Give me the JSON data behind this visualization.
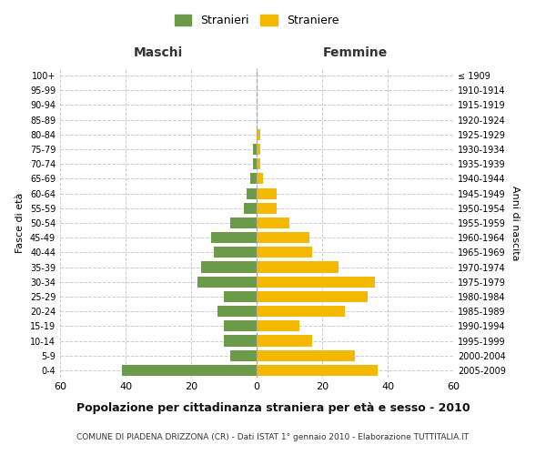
{
  "age_groups": [
    "0-4",
    "5-9",
    "10-14",
    "15-19",
    "20-24",
    "25-29",
    "30-34",
    "35-39",
    "40-44",
    "45-49",
    "50-54",
    "55-59",
    "60-64",
    "65-69",
    "70-74",
    "75-79",
    "80-84",
    "85-89",
    "90-94",
    "95-99",
    "100+"
  ],
  "birth_years": [
    "2005-2009",
    "2000-2004",
    "1995-1999",
    "1990-1994",
    "1985-1989",
    "1980-1984",
    "1975-1979",
    "1970-1974",
    "1965-1969",
    "1960-1964",
    "1955-1959",
    "1950-1954",
    "1945-1949",
    "1940-1944",
    "1935-1939",
    "1930-1934",
    "1925-1929",
    "1920-1924",
    "1915-1919",
    "1910-1914",
    "≤ 1909"
  ],
  "males": [
    41,
    8,
    10,
    10,
    12,
    10,
    18,
    17,
    13,
    14,
    8,
    4,
    3,
    2,
    1,
    1,
    0,
    0,
    0,
    0,
    0
  ],
  "females": [
    37,
    30,
    17,
    13,
    27,
    34,
    36,
    25,
    17,
    16,
    10,
    6,
    6,
    2,
    1,
    1,
    1,
    0,
    0,
    0,
    0
  ],
  "male_color": "#6a9a4a",
  "female_color": "#f5b800",
  "title": "Popolazione per cittadinanza straniera per età e sesso - 2010",
  "subtitle": "COMUNE DI PIADENA DRIZZONA (CR) - Dati ISTAT 1° gennaio 2010 - Elaborazione TUTTITALIA.IT",
  "xlabel_left": "Maschi",
  "xlabel_right": "Femmine",
  "ylabel_left": "Fasce di età",
  "ylabel_right": "Anni di nascita",
  "legend_male": "Stranieri",
  "legend_female": "Straniere",
  "xlim": 60,
  "background_color": "#ffffff",
  "grid_color": "#cccccc"
}
